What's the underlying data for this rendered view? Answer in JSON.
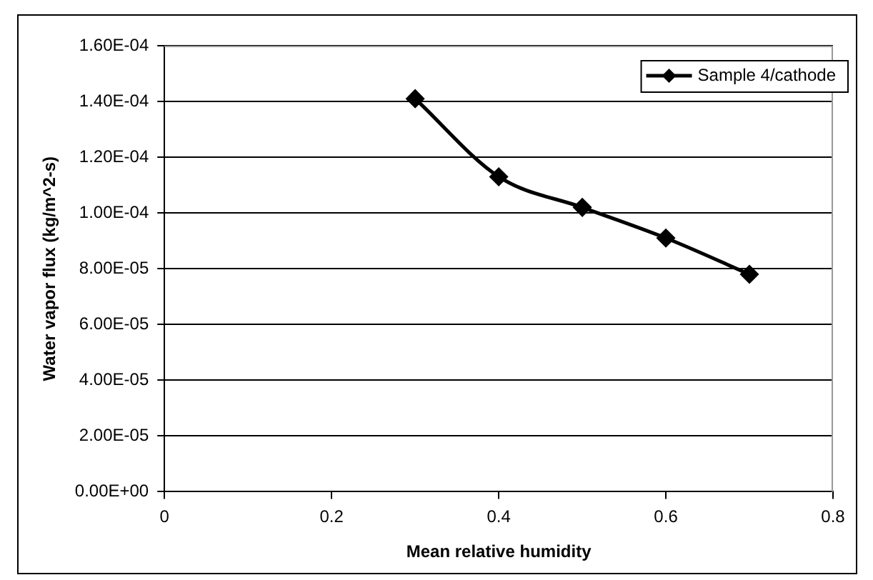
{
  "chart_data": {
    "type": "line",
    "xlabel": "Mean relative humidity",
    "ylabel": "Water vapor flux (kg/m^2-s)",
    "x": [
      0.3,
      0.4,
      0.5,
      0.6,
      0.7
    ],
    "series": [
      {
        "name": "Sample 4/cathode",
        "color": "#000000",
        "values": [
          0.000141,
          0.000113,
          0.000102,
          9.1e-05,
          7.8e-05
        ]
      }
    ],
    "xlim": [
      0,
      0.8
    ],
    "xticks": [
      0,
      0.2,
      0.4,
      0.6,
      0.8
    ],
    "ylim": [
      0,
      0.00016
    ],
    "yticks": [
      {
        "value": 0,
        "label": "0.00E+00"
      },
      {
        "value": 2e-05,
        "label": "2.00E-05"
      },
      {
        "value": 4e-05,
        "label": "4.00E-05"
      },
      {
        "value": 6e-05,
        "label": "6.00E-05"
      },
      {
        "value": 8e-05,
        "label": "8.00E-05"
      },
      {
        "value": 0.0001,
        "label": "1.00E-04"
      },
      {
        "value": 0.00012,
        "label": "1.20E-04"
      },
      {
        "value": 0.00014,
        "label": "1.40E-04"
      },
      {
        "value": 0.00016,
        "label": "1.60E-04"
      }
    ],
    "grid": "y",
    "legend": "top right",
    "marker": "diamond",
    "line_style": "solid"
  }
}
